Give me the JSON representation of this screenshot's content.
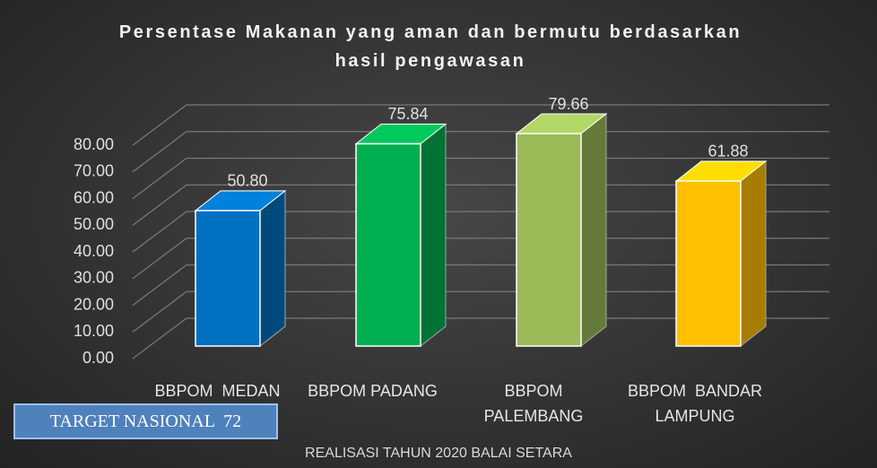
{
  "chart_data": {
    "type": "bar3d",
    "title": "Persentase Makanan yang aman dan bermutu berdasarkan hasil pengawasan",
    "x_label": "REALISASI TAHUN 2020 BALAI SETARA",
    "annotation": "TARGET NASIONAL  72",
    "categories": [
      "BBPOM  MEDAN",
      "BBPOM PADANG",
      "BBPOM PALEMBANG",
      "BBPOM  BANDAR LAMPUNG"
    ],
    "values": [
      50.8,
      75.84,
      79.66,
      61.88
    ],
    "value_labels": [
      "50.80",
      "75.84",
      "79.66",
      "61.88"
    ],
    "colors": [
      "#0070c0",
      "#00b050",
      "#9bbb59",
      "#ffc000"
    ],
    "ylim": [
      0,
      80
    ],
    "yticks": [
      {
        "value": 0,
        "label": "0.00"
      },
      {
        "value": 10,
        "label": "10.00"
      },
      {
        "value": 20,
        "label": "20.00"
      },
      {
        "value": 30,
        "label": "30.00"
      },
      {
        "value": 40,
        "label": "40.00"
      },
      {
        "value": 50,
        "label": "50.00"
      },
      {
        "value": 60,
        "label": "60.00"
      },
      {
        "value": 70,
        "label": "70.00"
      },
      {
        "value": 80,
        "label": "80.00"
      }
    ],
    "grid": true
  }
}
